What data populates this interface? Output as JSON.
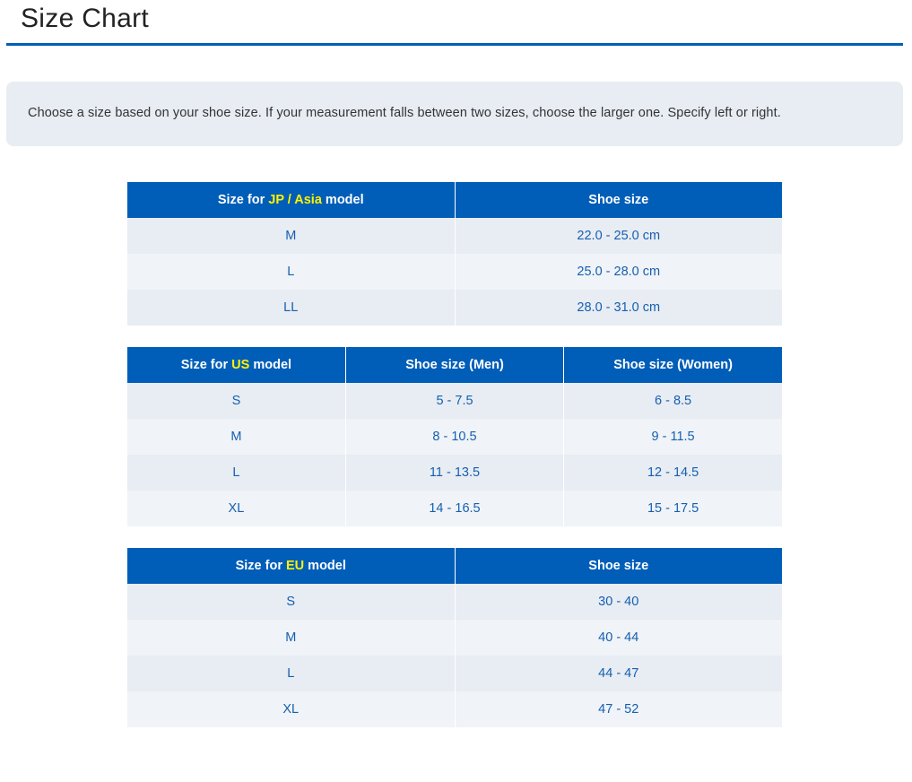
{
  "title": "Size Chart",
  "note": "Choose a size based on your shoe size. If your measurement falls between two sizes, choose the larger one. Specify left or right.",
  "colors": {
    "accent": "#005eb8",
    "highlight": "#fff200",
    "row_odd": "#e8ecf3",
    "row_even": "#f0f3f7"
  },
  "tables": [
    {
      "header": [
        {
          "prefix": "Size for ",
          "highlight": "JP / Asia",
          "suffix": " model"
        },
        {
          "prefix": "Shoe size",
          "highlight": "",
          "suffix": ""
        }
      ],
      "rows": [
        [
          "M",
          "22.0 - 25.0 cm"
        ],
        [
          "L",
          "25.0 - 28.0 cm"
        ],
        [
          "LL",
          "28.0 - 31.0 cm"
        ]
      ]
    },
    {
      "header": [
        {
          "prefix": "Size for ",
          "highlight": "US",
          "suffix": " model"
        },
        {
          "prefix": "Shoe size (Men)",
          "highlight": "",
          "suffix": ""
        },
        {
          "prefix": "Shoe size (Women)",
          "highlight": "",
          "suffix": ""
        }
      ],
      "rows": [
        [
          "S",
          "5 - 7.5",
          "6 - 8.5"
        ],
        [
          "M",
          "8 - 10.5",
          "9 - 11.5"
        ],
        [
          "L",
          "11 - 13.5",
          "12 - 14.5"
        ],
        [
          "XL",
          "14 - 16.5",
          "15 - 17.5"
        ]
      ]
    },
    {
      "header": [
        {
          "prefix": "Size for ",
          "highlight": "EU",
          "suffix": " model"
        },
        {
          "prefix": "Shoe size",
          "highlight": "",
          "suffix": ""
        }
      ],
      "rows": [
        [
          "S",
          "30 - 40"
        ],
        [
          "M",
          "40 - 44"
        ],
        [
          "L",
          "44 - 47"
        ],
        [
          "XL",
          "47 - 52"
        ]
      ]
    }
  ]
}
